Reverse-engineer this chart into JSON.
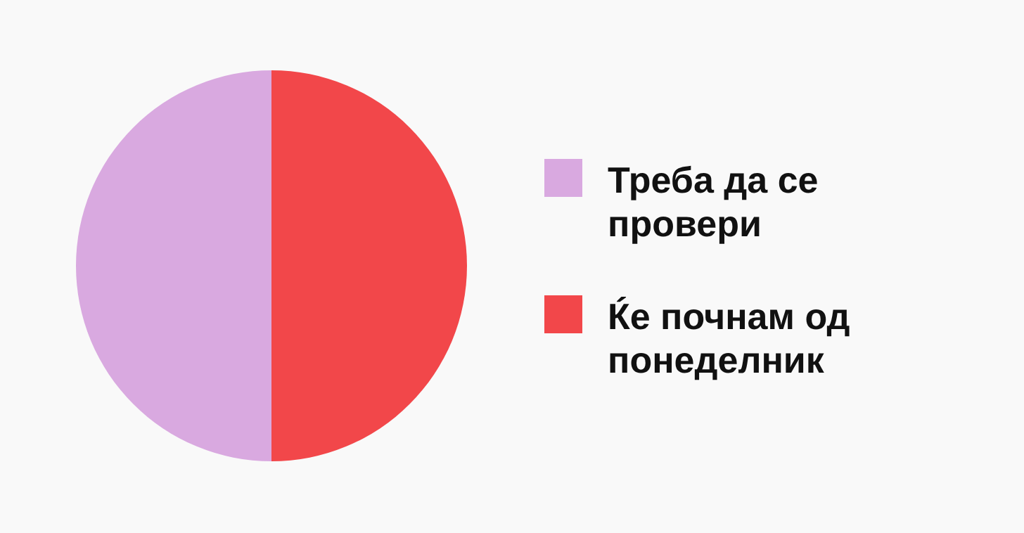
{
  "chart_data": {
    "type": "pie",
    "categories": [
      "Треба да се провери",
      "Ќе почнам од понеделник"
    ],
    "values": [
      50,
      50
    ],
    "colors": [
      "#d9a9e0",
      "#f2474a"
    ],
    "legend": "right"
  }
}
